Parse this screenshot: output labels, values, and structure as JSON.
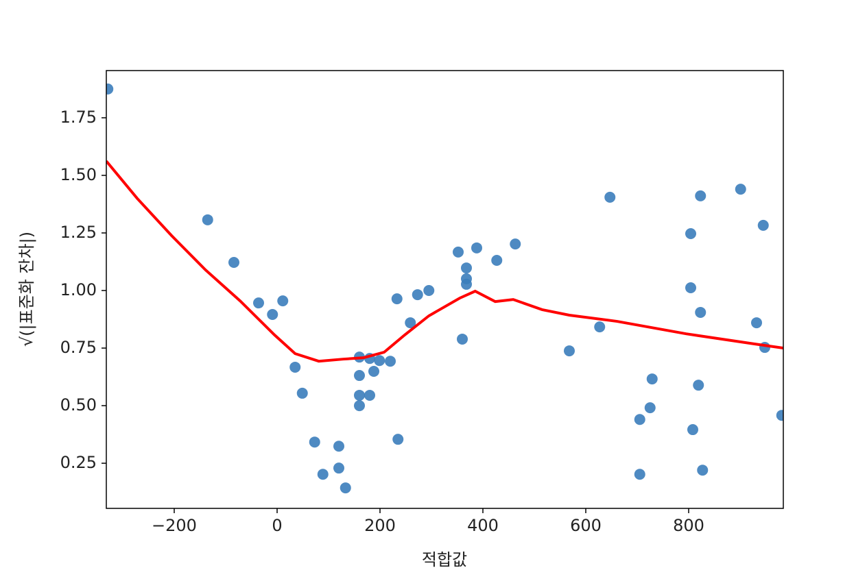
{
  "chart_data": {
    "type": "scatter",
    "xlabel": "적합값",
    "ylabel": "√(|표준화 잔차|)",
    "xlim": [
      -332,
      984
    ],
    "ylim": [
      0.054,
      1.955
    ],
    "xticks": [
      {
        "value": -200,
        "label": "−200"
      },
      0,
      200,
      400,
      600,
      800
    ],
    "yticks": [
      0.25,
      {
        "value": 0.5,
        "label": "0.50"
      },
      0.75,
      {
        "value": 1,
        "label": "1.00"
      },
      1.25,
      {
        "value": 1.5,
        "label": "1.50"
      },
      1.75
    ],
    "series": [
      {
        "type": "scatter",
        "color": "#3b7dbb",
        "x": [
          -329,
          -135,
          -84,
          -36,
          -9,
          11,
          35,
          49,
          73,
          89,
          120,
          120,
          133,
          160,
          160,
          160,
          160,
          180,
          180,
          188,
          199,
          220,
          233,
          235,
          259,
          273,
          295,
          352,
          360,
          368,
          368,
          368,
          388,
          427,
          463,
          568,
          627,
          647,
          705,
          705,
          725,
          729,
          804,
          804,
          808,
          819,
          823,
          823,
          827,
          901,
          932,
          945,
          948,
          981
        ],
        "values": [
          1.875,
          1.307,
          1.122,
          0.946,
          0.896,
          0.955,
          0.667,
          0.554,
          0.342,
          0.202,
          0.324,
          0.229,
          0.143,
          0.711,
          0.631,
          0.545,
          0.5,
          0.705,
          0.545,
          0.649,
          0.696,
          0.693,
          0.964,
          0.354,
          0.86,
          0.982,
          1.0,
          1.167,
          0.789,
          1.098,
          1.051,
          1.027,
          1.185,
          1.131,
          1.202,
          0.738,
          0.842,
          1.405,
          0.44,
          0.202,
          0.491,
          0.616,
          1.247,
          1.012,
          0.396,
          0.589,
          1.411,
          0.905,
          0.22,
          1.44,
          0.86,
          1.283,
          0.753,
          0.458
        ]
      },
      {
        "type": "line",
        "color": "#ff0000",
        "x": [
          -332,
          -272,
          -205,
          -139,
          -72,
          -5,
          35,
          81,
          128,
          168,
          208,
          248,
          295,
          355,
          385,
          424,
          459,
          515,
          568,
          661,
          795,
          928,
          984
        ],
        "values": [
          1.562,
          1.4,
          1.238,
          1.089,
          0.955,
          0.807,
          0.726,
          0.693,
          0.702,
          0.708,
          0.732,
          0.807,
          0.89,
          0.967,
          0.997,
          0.952,
          0.961,
          0.917,
          0.893,
          0.866,
          0.812,
          0.768,
          0.75
        ]
      }
    ]
  }
}
